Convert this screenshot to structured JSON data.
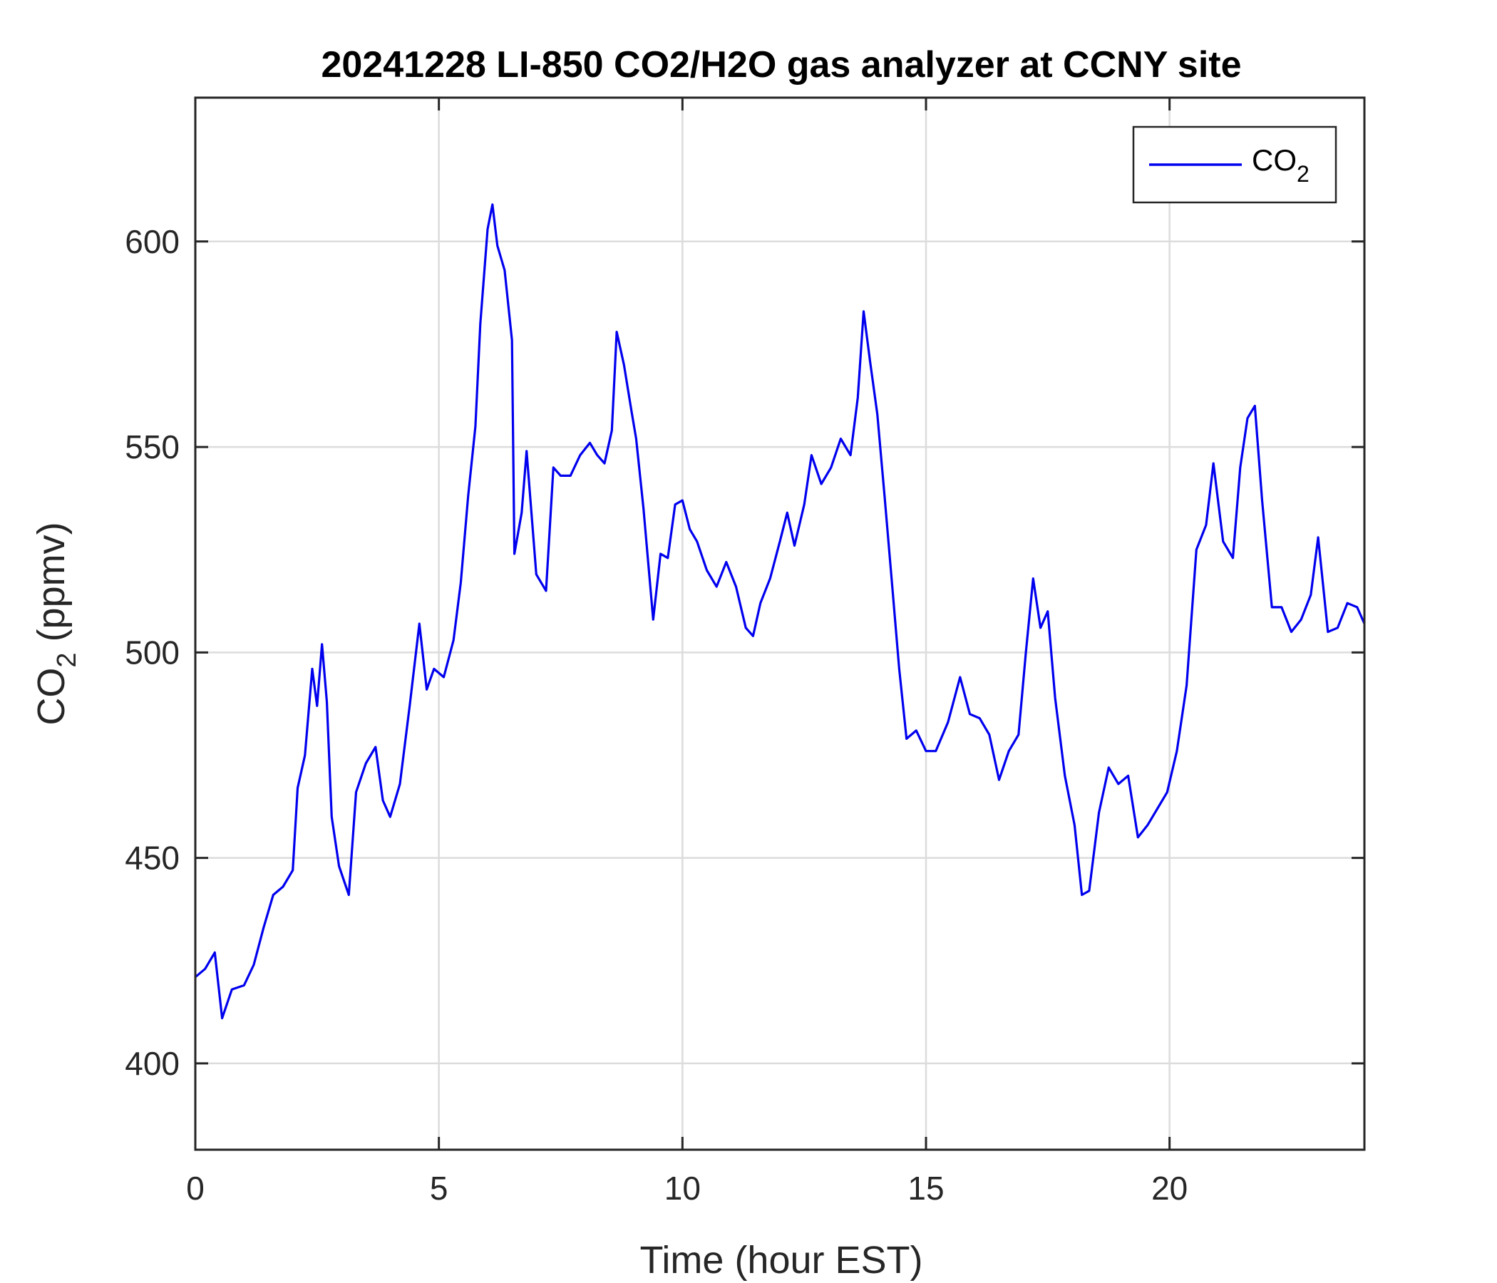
{
  "chart_data": {
    "type": "line",
    "title": "20241228 LI-850 CO2/H2O gas analyzer at CCNY site",
    "xlabel": "Time (hour EST)",
    "ylabel": {
      "base": "CO",
      "sub": "2",
      "rest": " (ppmv)"
    },
    "xlim": [
      0,
      24
    ],
    "ylim": [
      379,
      635
    ],
    "xticks": [
      0,
      5,
      10,
      15,
      20
    ],
    "xtick_labels": [
      "0",
      "5",
      "10",
      "15",
      "20"
    ],
    "yticks": [
      400,
      450,
      500,
      550,
      600
    ],
    "ytick_labels": [
      "400",
      "450",
      "500",
      "550",
      "600"
    ],
    "grid": true,
    "legend": {
      "placement": "top-right",
      "label_base": "CO",
      "label_sub": "2"
    },
    "series": [
      {
        "name": "CO2",
        "color": "#0000ee",
        "points": [
          [
            0.0,
            421
          ],
          [
            0.2,
            423
          ],
          [
            0.4,
            427
          ],
          [
            0.55,
            411
          ],
          [
            0.75,
            418
          ],
          [
            1.0,
            419
          ],
          [
            1.2,
            424
          ],
          [
            1.4,
            433
          ],
          [
            1.6,
            441
          ],
          [
            1.8,
            443
          ],
          [
            2.0,
            447
          ],
          [
            2.1,
            467
          ],
          [
            2.25,
            475
          ],
          [
            2.4,
            496
          ],
          [
            2.5,
            487
          ],
          [
            2.6,
            502
          ],
          [
            2.7,
            488
          ],
          [
            2.8,
            460
          ],
          [
            2.95,
            448
          ],
          [
            3.15,
            441
          ],
          [
            3.3,
            466
          ],
          [
            3.5,
            473
          ],
          [
            3.7,
            477
          ],
          [
            3.85,
            464
          ],
          [
            4.0,
            460
          ],
          [
            4.2,
            468
          ],
          [
            4.4,
            487
          ],
          [
            4.6,
            507
          ],
          [
            4.75,
            491
          ],
          [
            4.9,
            496
          ],
          [
            5.1,
            494
          ],
          [
            5.3,
            503
          ],
          [
            5.45,
            517
          ],
          [
            5.6,
            538
          ],
          [
            5.75,
            555
          ],
          [
            5.85,
            580
          ],
          [
            6.0,
            603
          ],
          [
            6.1,
            609
          ],
          [
            6.2,
            599
          ],
          [
            6.35,
            593
          ],
          [
            6.5,
            576
          ],
          [
            6.55,
            524
          ],
          [
            6.7,
            534
          ],
          [
            6.8,
            549
          ],
          [
            7.0,
            519
          ],
          [
            7.2,
            515
          ],
          [
            7.35,
            545
          ],
          [
            7.5,
            543
          ],
          [
            7.7,
            543
          ],
          [
            7.9,
            548
          ],
          [
            8.1,
            551
          ],
          [
            8.25,
            548
          ],
          [
            8.4,
            546
          ],
          [
            8.55,
            554
          ],
          [
            8.65,
            578
          ],
          [
            8.8,
            570
          ],
          [
            8.95,
            559
          ],
          [
            9.05,
            552
          ],
          [
            9.2,
            535
          ],
          [
            9.4,
            508
          ],
          [
            9.55,
            524
          ],
          [
            9.7,
            523
          ],
          [
            9.85,
            536
          ],
          [
            10.0,
            537
          ],
          [
            10.15,
            530
          ],
          [
            10.3,
            527
          ],
          [
            10.5,
            520
          ],
          [
            10.7,
            516
          ],
          [
            10.9,
            522
          ],
          [
            11.1,
            516
          ],
          [
            11.3,
            506
          ],
          [
            11.45,
            504
          ],
          [
            11.6,
            512
          ],
          [
            11.8,
            518
          ],
          [
            12.0,
            527
          ],
          [
            12.15,
            534
          ],
          [
            12.3,
            526
          ],
          [
            12.5,
            536
          ],
          [
            12.65,
            548
          ],
          [
            12.85,
            541
          ],
          [
            13.05,
            545
          ],
          [
            13.25,
            552
          ],
          [
            13.45,
            548
          ],
          [
            13.6,
            562
          ],
          [
            13.72,
            583
          ],
          [
            13.85,
            571
          ],
          [
            14.0,
            558
          ],
          [
            14.15,
            538
          ],
          [
            14.3,
            517
          ],
          [
            14.45,
            496
          ],
          [
            14.6,
            479
          ],
          [
            14.8,
            481
          ],
          [
            15.0,
            476
          ],
          [
            15.2,
            476
          ],
          [
            15.45,
            483
          ],
          [
            15.7,
            494
          ],
          [
            15.9,
            485
          ],
          [
            16.1,
            484
          ],
          [
            16.3,
            480
          ],
          [
            16.5,
            469
          ],
          [
            16.7,
            476
          ],
          [
            16.9,
            480
          ],
          [
            17.05,
            500
          ],
          [
            17.2,
            518
          ],
          [
            17.35,
            506
          ],
          [
            17.5,
            510
          ],
          [
            17.65,
            489
          ],
          [
            17.85,
            470
          ],
          [
            18.05,
            458
          ],
          [
            18.2,
            441
          ],
          [
            18.35,
            442
          ],
          [
            18.55,
            461
          ],
          [
            18.75,
            472
          ],
          [
            18.95,
            468
          ],
          [
            19.15,
            470
          ],
          [
            19.35,
            455
          ],
          [
            19.55,
            458
          ],
          [
            19.75,
            462
          ],
          [
            19.95,
            466
          ],
          [
            20.15,
            476
          ],
          [
            20.35,
            492
          ],
          [
            20.55,
            525
          ],
          [
            20.75,
            531
          ],
          [
            20.9,
            546
          ],
          [
            21.1,
            527
          ],
          [
            21.3,
            523
          ],
          [
            21.45,
            545
          ],
          [
            21.6,
            557
          ],
          [
            21.75,
            560
          ],
          [
            21.9,
            537
          ],
          [
            22.1,
            511
          ],
          [
            22.3,
            511
          ],
          [
            22.5,
            505
          ],
          [
            22.7,
            508
          ],
          [
            22.9,
            514
          ],
          [
            23.05,
            528
          ],
          [
            23.25,
            505
          ],
          [
            23.45,
            506
          ],
          [
            23.65,
            512
          ],
          [
            23.85,
            511
          ],
          [
            24.0,
            507
          ]
        ]
      }
    ]
  }
}
